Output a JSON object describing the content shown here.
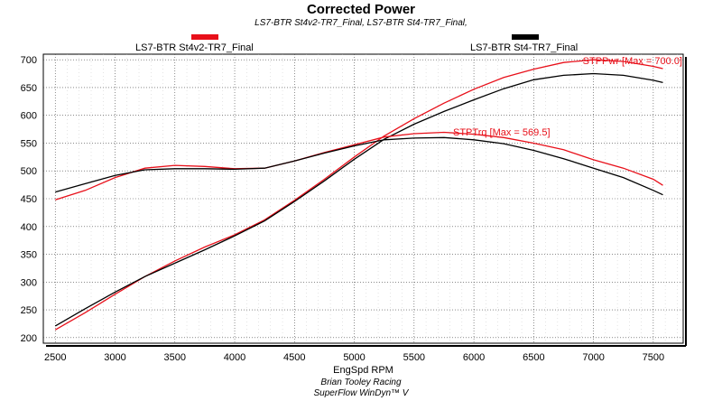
{
  "chart_data": {
    "type": "line",
    "title": "Corrected Power",
    "subtitle": "LS7-BTR St4v2-TR7_Final, LS7-BTR St4-TR7_Final,",
    "xlabel": "EngSpd RPM",
    "ylabel": "",
    "xlim": [
      2400,
      7750
    ],
    "ylim": [
      190,
      710
    ],
    "xticks": [
      2500,
      3000,
      3500,
      4000,
      4500,
      5000,
      5500,
      6000,
      6500,
      7000,
      7500
    ],
    "yticks": [
      200,
      250,
      300,
      350,
      400,
      450,
      500,
      550,
      600,
      650,
      700
    ],
    "grid": true,
    "legend": [
      {
        "label": "LS7-BTR St4v2-TR7_Final",
        "color": "#e8101a"
      },
      {
        "label": "LS7-BTR St4-TR7_Final",
        "color": "#000000"
      }
    ],
    "annotations": [
      {
        "text": "STPPwr [Max = 700.0]",
        "color": "#e8101a"
      },
      {
        "text": "STPTrq [Max = 569.5]",
        "color": "#e8101a"
      }
    ],
    "series": [
      {
        "name": "LS7-BTR St4v2-TR7_Final STPPwr",
        "color": "#e8101a",
        "x": [
          2500,
          2750,
          3000,
          3250,
          3500,
          3750,
          4000,
          4250,
          4500,
          4750,
          5000,
          5250,
          5500,
          5750,
          6000,
          6250,
          6500,
          6750,
          7000,
          7250,
          7500,
          7580
        ],
        "y": [
          214,
          245,
          278,
          310,
          338,
          363,
          385,
          412,
          447,
          485,
          525,
          563,
          594,
          622,
          647,
          668,
          683,
          695,
          700,
          697,
          688,
          684
        ]
      },
      {
        "name": "LS7-BTR St4-TR7_Final STPPwr",
        "color": "#000000",
        "x": [
          2500,
          2750,
          3000,
          3250,
          3500,
          3750,
          4000,
          4250,
          4500,
          4750,
          5000,
          5250,
          5500,
          5750,
          6000,
          6250,
          6500,
          6750,
          7000,
          7250,
          7500,
          7580
        ],
        "y": [
          221,
          252,
          282,
          310,
          334,
          358,
          383,
          410,
          445,
          482,
          521,
          557,
          584,
          607,
          628,
          648,
          664,
          672,
          675,
          672,
          663,
          659
        ]
      },
      {
        "name": "LS7-BTR St4v2-TR7_Final STPTrq",
        "color": "#e8101a",
        "x": [
          2500,
          2750,
          3000,
          3250,
          3500,
          3750,
          4000,
          4250,
          4500,
          4750,
          5000,
          5250,
          5500,
          5750,
          6000,
          6250,
          6500,
          6750,
          7000,
          7250,
          7500,
          7580
        ],
        "y": [
          448,
          465,
          488,
          505,
          510,
          508,
          504,
          505,
          518,
          533,
          547,
          561,
          567,
          569.5,
          566,
          560,
          550,
          538,
          520,
          505,
          485,
          474
        ]
      },
      {
        "name": "LS7-BTR St4-TR7_Final STPTrq",
        "color": "#000000",
        "x": [
          2500,
          2750,
          3000,
          3250,
          3500,
          3750,
          4000,
          4250,
          4500,
          4750,
          5000,
          5250,
          5500,
          5750,
          6000,
          6250,
          6500,
          6750,
          7000,
          7250,
          7500,
          7580
        ],
        "y": [
          462,
          477,
          492,
          502,
          504,
          504,
          503,
          505,
          518,
          532,
          545,
          556,
          559,
          560,
          556,
          549,
          537,
          522,
          505,
          488,
          465,
          457
        ]
      }
    ]
  },
  "footer": {
    "line1": "Brian Tooley Racing",
    "line2": "SuperFlow WinDyn™ V"
  }
}
